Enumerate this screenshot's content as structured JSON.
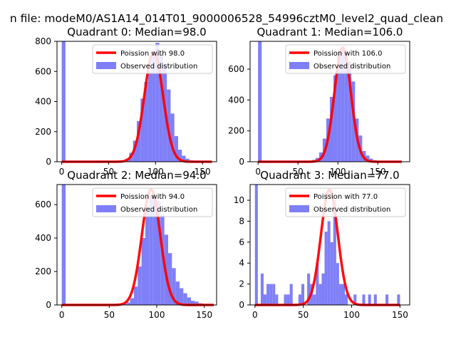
{
  "figure_title": "n file: modeM0/AS1A14_014T01_9000006528_54996cztM0_level2_quad_clean",
  "colors": {
    "hist": "#7f7ff8",
    "curve": "#ff0000",
    "axes": "#000000",
    "legend_border": "#cccccc"
  },
  "chart_data": [
    {
      "type": "bar+line",
      "title": "Quadrant 0: Median=98.0",
      "median": 98.0,
      "xlim": [
        -5,
        165
      ],
      "ylim": [
        0,
        800
      ],
      "xticks": [
        0,
        50,
        100,
        150
      ],
      "yticks": [
        0,
        200,
        400,
        600,
        800
      ],
      "legend": [
        "Poission with 98.0",
        "Observed distribution"
      ],
      "legend_loc": "upper right",
      "bin_width": 4,
      "hist_x": [
        0,
        56,
        60,
        64,
        68,
        72,
        76,
        80,
        84,
        88,
        92,
        96,
        100,
        104,
        108,
        112,
        116,
        120,
        124,
        128,
        132,
        136,
        140,
        144,
        148,
        152,
        156
      ],
      "hist_y": [
        800,
        2,
        4,
        8,
        20,
        60,
        140,
        270,
        420,
        530,
        600,
        730,
        790,
        720,
        650,
        480,
        320,
        170,
        80,
        40,
        20,
        10,
        4,
        2,
        2,
        1,
        1
      ],
      "curve_scale": 730,
      "curve_sigma": 9.9,
      "curve_xmax": 160
    },
    {
      "type": "bar+line",
      "title": "Quadrant 1: Median=106.0",
      "median": 106.0,
      "xlim": [
        -10,
        190
      ],
      "ylim": [
        0,
        780
      ],
      "xticks": [
        0,
        50,
        100,
        150
      ],
      "yticks": [
        0,
        200,
        400,
        600
      ],
      "legend": [
        "Poission with 106.0",
        "Observed distribution"
      ],
      "legend_loc": "upper right",
      "bin_width": 4.5,
      "hist_x": [
        0,
        58.5,
        63,
        67.5,
        72,
        76.5,
        81,
        85.5,
        90,
        94.5,
        99,
        103.5,
        108,
        112.5,
        117,
        121.5,
        126,
        130.5,
        135,
        139.5,
        144,
        148.5,
        153,
        157.5
      ],
      "hist_y": [
        780,
        2,
        5,
        12,
        25,
        60,
        150,
        280,
        420,
        560,
        700,
        740,
        720,
        650,
        520,
        280,
        170,
        70,
        40,
        20,
        10,
        5,
        2,
        1
      ],
      "curve_scale": 740,
      "curve_sigma": 10.3,
      "curve_xmax": 180
    },
    {
      "type": "bar+line",
      "title": "Quadrant 2: Median=94.0",
      "median": 94.0,
      "xlim": [
        -5,
        163
      ],
      "ylim": [
        0,
        720
      ],
      "xticks": [
        0,
        50,
        100,
        150
      ],
      "yticks": [
        0,
        200,
        400,
        600
      ],
      "legend": [
        "Poission with 94.0",
        "Observed distribution"
      ],
      "legend_loc": "upper right",
      "bin_width": 4,
      "hist_x": [
        0,
        64,
        68,
        72,
        76,
        80,
        84,
        88,
        92,
        96,
        100,
        104,
        108,
        112,
        116,
        120,
        124,
        128,
        132,
        136,
        140,
        144,
        148,
        152,
        156
      ],
      "hist_y": [
        720,
        5,
        15,
        40,
        110,
        230,
        400,
        580,
        650,
        640,
        620,
        540,
        420,
        310,
        220,
        140,
        100,
        70,
        45,
        25,
        20,
        10,
        5,
        2,
        1
      ],
      "curve_scale": 690,
      "curve_sigma": 9.7,
      "curve_xmax": 160
    },
    {
      "type": "bar+line",
      "title": "Quadrant 3: Median=77.0",
      "median": 77.0,
      "xlim": [
        -5,
        160
      ],
      "ylim": [
        0,
        11.5
      ],
      "xticks": [
        0,
        50,
        100,
        150
      ],
      "yticks": [
        0,
        2,
        4,
        6,
        8,
        10
      ],
      "legend": [
        "Poission with 77.0",
        "Observed distribution"
      ],
      "legend_loc": "upper right",
      "bin_width": 3,
      "hist_x": [
        0,
        6,
        9,
        12,
        15,
        18,
        21,
        30,
        33,
        36,
        45,
        48,
        54,
        57,
        60,
        63,
        66,
        69,
        72,
        75,
        78,
        81,
        84,
        87,
        90,
        93,
        102,
        111,
        117,
        123,
        135,
        147
      ],
      "hist_y": [
        11.5,
        3,
        1,
        2,
        2,
        2,
        1,
        1,
        1,
        2,
        1,
        2,
        3,
        2,
        1,
        4,
        2,
        3,
        7,
        8,
        6,
        10,
        4,
        2,
        2,
        1,
        1,
        1,
        1,
        1,
        1,
        1
      ],
      "curve_scale": 11,
      "curve_sigma": 8.8,
      "curve_xmax": 150
    }
  ]
}
